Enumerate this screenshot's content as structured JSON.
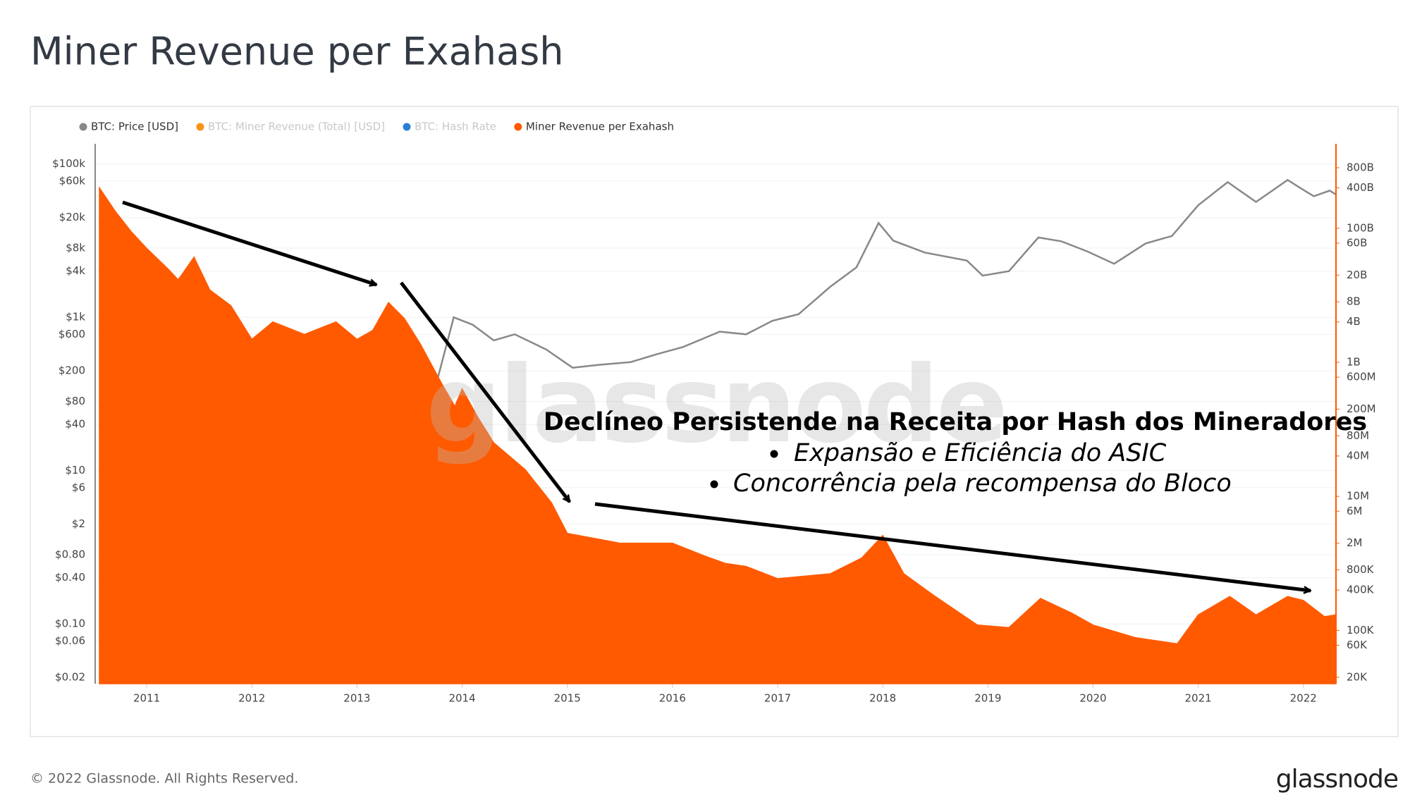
{
  "chart_data": {
    "type": "log-area-line",
    "title": "Miner Revenue per Exahash",
    "series": [
      {
        "name": "BTC: Price [USD]",
        "color": "#888888",
        "axis": "y",
        "x": [
          2010.55,
          2010.8,
          2011.0,
          2011.2,
          2011.45,
          2011.6,
          2011.9,
          2012.2,
          2012.5,
          2012.8,
          2013.0,
          2013.28,
          2013.5,
          2013.75,
          2013.92,
          2014.1,
          2014.3,
          2014.5,
          2014.8,
          2015.05,
          2015.3,
          2015.6,
          2015.85,
          2016.1,
          2016.45,
          2016.7,
          2016.95,
          2017.2,
          2017.5,
          2017.75,
          2017.96,
          2018.1,
          2018.4,
          2018.8,
          2018.95,
          2019.2,
          2019.48,
          2019.7,
          2019.95,
          2020.2,
          2020.5,
          2020.75,
          2021.0,
          2021.28,
          2021.55,
          2021.85,
          2022.0,
          2022.1,
          2022.25,
          2022.31
        ],
        "values": [
          0.07,
          0.2,
          0.3,
          1,
          20,
          12,
          3,
          5,
          7,
          11,
          13,
          150,
          90,
          130,
          1000,
          800,
          500,
          600,
          380,
          220,
          240,
          260,
          330,
          410,
          650,
          600,
          900,
          1100,
          2500,
          4500,
          17000,
          10000,
          7000,
          5500,
          3500,
          4000,
          11000,
          9800,
          7200,
          5000,
          9200,
          11500,
          29000,
          58000,
          32000,
          62000,
          46000,
          38000,
          45000,
          40000
        ]
      },
      {
        "name": "Miner Revenue per Exahash",
        "color": "#ff5a00",
        "axis": "y2",
        "x": [
          2010.55,
          2010.7,
          2010.85,
          2011.0,
          2011.2,
          2011.3,
          2011.45,
          2011.6,
          2011.8,
          2012.0,
          2012.2,
          2012.5,
          2012.8,
          2013.0,
          2013.15,
          2013.3,
          2013.45,
          2013.6,
          2013.8,
          2013.93,
          2014.0,
          2014.15,
          2014.3,
          2014.6,
          2014.85,
          2015.0,
          2015.5,
          2016.0,
          2016.3,
          2016.5,
          2016.7,
          2017.0,
          2017.5,
          2017.8,
          2018.0,
          2018.2,
          2018.5,
          2018.9,
          2019.2,
          2019.5,
          2019.8,
          2020.0,
          2020.4,
          2020.8,
          2021.0,
          2021.3,
          2021.55,
          2021.85,
          2022.0,
          2022.2,
          2022.31
        ],
        "values": [
          400000000000,
          180000000000,
          90000000000,
          50000000000,
          25000000000,
          17000000000,
          37000000000,
          12000000000,
          7000000000,
          2200000000,
          4000000000,
          2600000000,
          4000000000,
          2200000000,
          3000000000,
          7800000000,
          4500000000,
          1900000000,
          500000000,
          220000000,
          400000000,
          150000000,
          63000000,
          25000000,
          8000000,
          2800000,
          2000000,
          2000000,
          1300000,
          1000000,
          900000,
          590000,
          700000,
          1200000,
          2600000,
          700000,
          320000,
          120000,
          110000,
          300000,
          180000,
          120000,
          78000,
          63000,
          170000,
          320000,
          170000,
          320000,
          280000,
          160000,
          170000
        ]
      }
    ],
    "inactive_series": [
      {
        "name": "BTC: Miner Revenue (Total) [USD]",
        "color": "#f7931a"
      },
      {
        "name": "BTC: Hash Rate",
        "color": "#2a7fd4"
      }
    ],
    "log_scale": true,
    "grid": true,
    "xlim": [
      2010.51,
      2022.31
    ],
    "xticks": [
      2011,
      2012,
      2013,
      2014,
      2015,
      2016,
      2017,
      2018,
      2019,
      2020,
      2021,
      2022
    ],
    "ylim": [
      0.0166,
      155000
    ],
    "yticks": [
      {
        "value": 100000,
        "label": "$100k"
      },
      {
        "value": 60000,
        "label": "$60k"
      },
      {
        "value": 20000,
        "label": "$20k"
      },
      {
        "value": 8000,
        "label": "$8k"
      },
      {
        "value": 4000,
        "label": "$4k"
      },
      {
        "value": 1000,
        "label": "$1k"
      },
      {
        "value": 600,
        "label": "$600"
      },
      {
        "value": 200,
        "label": "$200"
      },
      {
        "value": 80,
        "label": "$80"
      },
      {
        "value": 40,
        "label": "$40"
      },
      {
        "value": 10,
        "label": "$10"
      },
      {
        "value": 6,
        "label": "$6"
      },
      {
        "value": 2,
        "label": "$2"
      },
      {
        "value": 0.8,
        "label": "$0.80"
      },
      {
        "value": 0.4,
        "label": "$0.40"
      },
      {
        "value": 0.1,
        "label": "$0.10"
      },
      {
        "value": 0.06,
        "label": "$0.06"
      },
      {
        "value": 0.02,
        "label": "$0.02"
      }
    ],
    "y2lim": [
      16000,
      1500000000000
    ],
    "y2ticks": [
      {
        "value": 800000000000,
        "label": "800B"
      },
      {
        "value": 400000000000,
        "label": "400B"
      },
      {
        "value": 100000000000,
        "label": "100B"
      },
      {
        "value": 60000000000,
        "label": "60B"
      },
      {
        "value": 20000000000,
        "label": "20B"
      },
      {
        "value": 8000000000,
        "label": "8B"
      },
      {
        "value": 4000000000,
        "label": "4B"
      },
      {
        "value": 1000000000,
        "label": "1B"
      },
      {
        "value": 600000000,
        "label": "600M"
      },
      {
        "value": 200000000,
        "label": "200M"
      },
      {
        "value": 80000000,
        "label": "80M"
      },
      {
        "value": 40000000,
        "label": "40M"
      },
      {
        "value": 10000000,
        "label": "10M"
      },
      {
        "value": 6000000,
        "label": "6M"
      },
      {
        "value": 2000000,
        "label": "2M"
      },
      {
        "value": 800000,
        "label": "800K"
      },
      {
        "value": 400000,
        "label": "400K"
      },
      {
        "value": 100000,
        "label": "100K"
      },
      {
        "value": 60000,
        "label": "60K"
      },
      {
        "value": 20000,
        "label": "20K"
      }
    ],
    "annotation": {
      "heading": "Declíneo Persistende na Receita por Hash dos Mineradores",
      "bullets": [
        "Expansão e Eficiência do ASIC",
        "Concorrência pela recompensa do Bloco"
      ]
    },
    "watermark": "glassnode"
  },
  "footer": {
    "copyright": "© 2022 Glassnode. All Rights Reserved.",
    "logo": "glassnode"
  }
}
